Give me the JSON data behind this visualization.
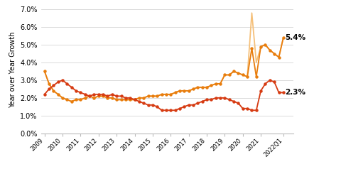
{
  "title": "",
  "ylabel": "Year over Year Growth",
  "ylim": [
    0.0,
    0.072
  ],
  "yticks": [
    0.0,
    0.01,
    0.02,
    0.03,
    0.04,
    0.05,
    0.06,
    0.07
  ],
  "ytick_labels": [
    "0.0%",
    "1.0%",
    "2.0%",
    "3.0%",
    "4.0%",
    "5.0%",
    "6.0%",
    "7.0%"
  ],
  "annotation_54": "5.4%",
  "annotation_23": "2.3%",
  "color_ces": "#f5c07a",
  "color_ces_censored": "#e87d0d",
  "color_hcpi": "#d63b12",
  "background_color": "#ffffff",
  "gridcolor": "#cccccc",
  "ces_x": [
    2009.0,
    2009.25,
    2009.5,
    2009.75,
    2010.0,
    2010.25,
    2010.5,
    2010.75,
    2011.0,
    2011.25,
    2011.5,
    2011.75,
    2012.0,
    2012.25,
    2012.5,
    2012.75,
    2013.0,
    2013.25,
    2013.5,
    2013.75,
    2014.0,
    2014.25,
    2014.5,
    2014.75,
    2015.0,
    2015.25,
    2015.5,
    2015.75,
    2016.0,
    2016.25,
    2016.5,
    2016.75,
    2017.0,
    2017.25,
    2017.5,
    2017.75,
    2018.0,
    2018.25,
    2018.5,
    2018.75,
    2019.0,
    2019.25,
    2019.5,
    2019.75,
    2020.0,
    2020.25,
    2020.5,
    2020.75,
    2021.0,
    2021.25,
    2021.5,
    2021.75,
    2022.0,
    2022.25
  ],
  "ces_y": [
    0.035,
    0.028,
    0.024,
    0.022,
    0.02,
    0.019,
    0.018,
    0.019,
    0.019,
    0.02,
    0.021,
    0.02,
    0.021,
    0.021,
    0.02,
    0.02,
    0.019,
    0.019,
    0.019,
    0.019,
    0.019,
    0.02,
    0.02,
    0.021,
    0.021,
    0.021,
    0.022,
    0.022,
    0.022,
    0.023,
    0.024,
    0.024,
    0.024,
    0.025,
    0.026,
    0.026,
    0.026,
    0.027,
    0.028,
    0.028,
    0.033,
    0.033,
    0.035,
    0.034,
    0.033,
    0.032,
    0.068,
    0.04,
    0.049,
    0.05,
    0.047,
    0.045,
    0.043,
    0.054
  ],
  "ces_censored_x": [
    2009.0,
    2009.25,
    2009.5,
    2009.75,
    2010.0,
    2010.25,
    2010.5,
    2010.75,
    2011.0,
    2011.25,
    2011.5,
    2011.75,
    2012.0,
    2012.25,
    2012.5,
    2012.75,
    2013.0,
    2013.25,
    2013.5,
    2013.75,
    2014.0,
    2014.25,
    2014.5,
    2014.75,
    2015.0,
    2015.25,
    2015.5,
    2015.75,
    2016.0,
    2016.25,
    2016.5,
    2016.75,
    2017.0,
    2017.25,
    2017.5,
    2017.75,
    2018.0,
    2018.25,
    2018.5,
    2018.75,
    2019.0,
    2019.25,
    2019.5,
    2019.75,
    2020.0,
    2020.25,
    2020.5,
    2020.75,
    2021.0,
    2021.25,
    2021.5,
    2021.75,
    2022.0,
    2022.25
  ],
  "ces_censored_y": [
    0.035,
    0.028,
    0.024,
    0.022,
    0.02,
    0.019,
    0.018,
    0.019,
    0.019,
    0.02,
    0.021,
    0.02,
    0.021,
    0.021,
    0.02,
    0.02,
    0.019,
    0.019,
    0.019,
    0.019,
    0.019,
    0.02,
    0.02,
    0.021,
    0.021,
    0.021,
    0.022,
    0.022,
    0.022,
    0.023,
    0.024,
    0.024,
    0.024,
    0.025,
    0.026,
    0.026,
    0.026,
    0.027,
    0.028,
    0.028,
    0.033,
    0.033,
    0.035,
    0.034,
    0.033,
    0.032,
    0.048,
    0.032,
    0.049,
    0.05,
    0.047,
    0.045,
    0.043,
    0.054
  ],
  "hcpi_x": [
    2009.0,
    2009.25,
    2009.5,
    2009.75,
    2010.0,
    2010.25,
    2010.5,
    2010.75,
    2011.0,
    2011.25,
    2011.5,
    2011.75,
    2012.0,
    2012.25,
    2012.5,
    2012.75,
    2013.0,
    2013.25,
    2013.5,
    2013.75,
    2014.0,
    2014.25,
    2014.5,
    2014.75,
    2015.0,
    2015.25,
    2015.5,
    2015.75,
    2016.0,
    2016.25,
    2016.5,
    2016.75,
    2017.0,
    2017.25,
    2017.5,
    2017.75,
    2018.0,
    2018.25,
    2018.5,
    2018.75,
    2019.0,
    2019.25,
    2019.5,
    2019.75,
    2020.0,
    2020.25,
    2020.5,
    2020.75,
    2021.0,
    2021.25,
    2021.5,
    2021.75,
    2022.0,
    2022.25
  ],
  "hcpi_y": [
    0.022,
    0.025,
    0.027,
    0.029,
    0.03,
    0.028,
    0.026,
    0.024,
    0.023,
    0.022,
    0.021,
    0.022,
    0.022,
    0.022,
    0.021,
    0.022,
    0.021,
    0.021,
    0.02,
    0.02,
    0.019,
    0.018,
    0.017,
    0.016,
    0.016,
    0.015,
    0.013,
    0.013,
    0.013,
    0.013,
    0.014,
    0.015,
    0.016,
    0.016,
    0.017,
    0.018,
    0.019,
    0.019,
    0.02,
    0.02,
    0.02,
    0.019,
    0.018,
    0.017,
    0.014,
    0.014,
    0.013,
    0.013,
    0.024,
    0.028,
    0.03,
    0.029,
    0.023,
    0.023
  ],
  "xtick_positions": [
    2009,
    2010,
    2011,
    2012,
    2013,
    2014,
    2015,
    2016,
    2017,
    2018,
    2019,
    2020,
    2021,
    2022.25
  ],
  "xtick_labels": [
    "2009",
    "2010",
    "2011",
    "2012",
    "2013",
    "2014",
    "2015",
    "2016",
    "2017",
    "2018",
    "2019",
    "2020",
    "2021",
    "2022Q1"
  ],
  "xlim_left": 2008.8,
  "xlim_right": 2022.8
}
